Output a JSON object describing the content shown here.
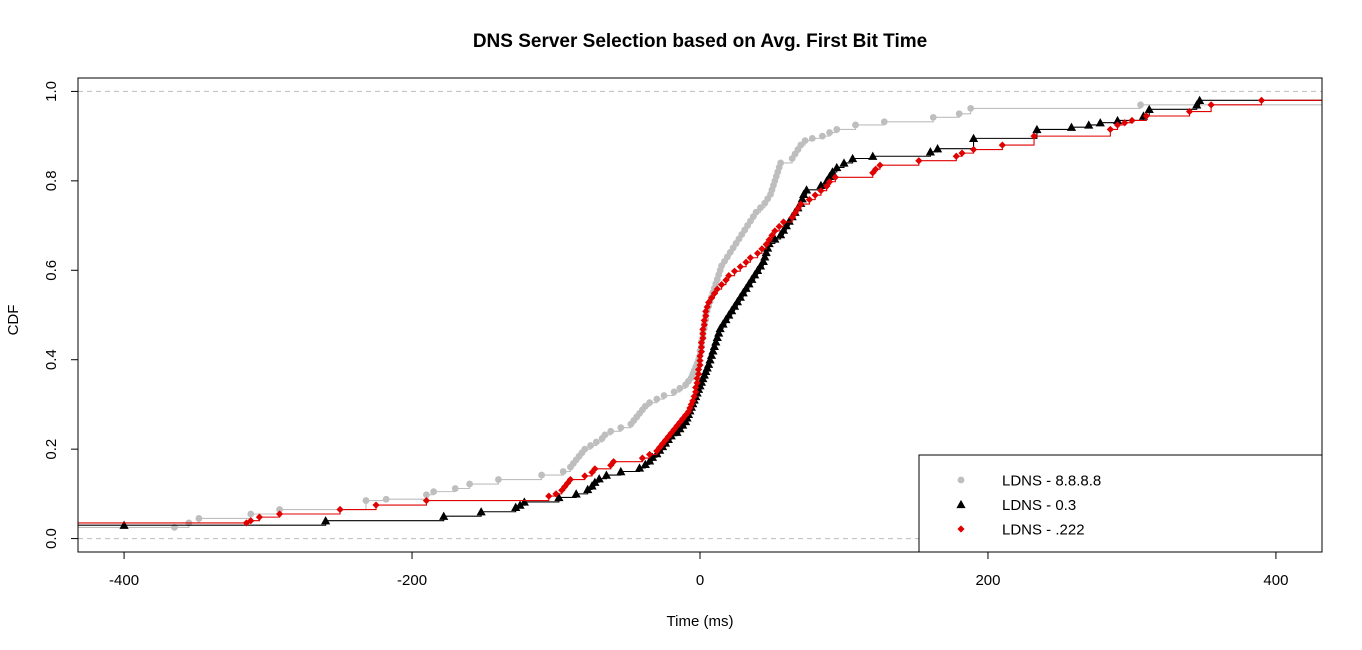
{
  "chart_data": {
    "type": "line",
    "subtype": "empirical-cdf-step",
    "title": "DNS Server Selection based on Avg. First Bit Time",
    "xlabel": "Time (ms)",
    "ylabel": "CDF",
    "xlim": [
      -432,
      432
    ],
    "ylim": [
      -0.03,
      1.03
    ],
    "xticks": [
      -400,
      -200,
      0,
      200,
      400
    ],
    "yticks": [
      0.0,
      0.2,
      0.4,
      0.6,
      0.8,
      1.0
    ],
    "xtick_labels": [
      "-400",
      "-200",
      "0",
      "200",
      "400"
    ],
    "ytick_labels": [
      "0.0",
      "0.2",
      "0.4",
      "0.6",
      "0.8",
      "1.0"
    ],
    "reference_lines_y": [
      0,
      1
    ],
    "grid": false,
    "legend_position": "bottom-right",
    "series": [
      {
        "name": "LDNS - 8.8.8.8",
        "color": "#bebebe",
        "marker": "circle",
        "points": [
          [
            -365,
            0.025
          ],
          [
            -355,
            0.035
          ],
          [
            -348,
            0.045
          ],
          [
            -312,
            0.055
          ],
          [
            -292,
            0.065
          ],
          [
            -232,
            0.085
          ],
          [
            -218,
            0.088
          ],
          [
            -190,
            0.098
          ],
          [
            -185,
            0.105
          ],
          [
            -170,
            0.112
          ],
          [
            -160,
            0.122
          ],
          [
            -140,
            0.132
          ],
          [
            -110,
            0.142
          ],
          [
            -95,
            0.15
          ],
          [
            -90,
            0.16
          ],
          [
            -88,
            0.168
          ],
          [
            -86,
            0.176
          ],
          [
            -84,
            0.184
          ],
          [
            -82,
            0.192
          ],
          [
            -80,
            0.2
          ],
          [
            -76,
            0.208
          ],
          [
            -72,
            0.216
          ],
          [
            -68,
            0.224
          ],
          [
            -66,
            0.232
          ],
          [
            -62,
            0.24
          ],
          [
            -55,
            0.248
          ],
          [
            -48,
            0.256
          ],
          [
            -46,
            0.264
          ],
          [
            -44,
            0.272
          ],
          [
            -42,
            0.28
          ],
          [
            -40,
            0.288
          ],
          [
            -38,
            0.296
          ],
          [
            -35,
            0.304
          ],
          [
            -30,
            0.312
          ],
          [
            -25,
            0.32
          ],
          [
            -18,
            0.328
          ],
          [
            -14,
            0.336
          ],
          [
            -10,
            0.344
          ],
          [
            -8,
            0.352
          ],
          [
            -6,
            0.36
          ],
          [
            -5,
            0.368
          ],
          [
            -4,
            0.376
          ],
          [
            -3,
            0.384
          ],
          [
            -2,
            0.392
          ],
          [
            -1,
            0.4
          ],
          [
            0,
            0.41
          ],
          [
            0,
            0.42
          ],
          [
            1,
            0.43
          ],
          [
            1,
            0.44
          ],
          [
            2,
            0.45
          ],
          [
            2,
            0.46
          ],
          [
            3,
            0.47
          ],
          [
            3,
            0.48
          ],
          [
            4,
            0.49
          ],
          [
            4,
            0.5
          ],
          [
            5,
            0.51
          ],
          [
            6,
            0.52
          ],
          [
            7,
            0.53
          ],
          [
            8,
            0.54
          ],
          [
            9,
            0.55
          ],
          [
            10,
            0.56
          ],
          [
            11,
            0.57
          ],
          [
            12,
            0.58
          ],
          [
            13,
            0.59
          ],
          [
            14,
            0.6
          ],
          [
            15,
            0.61
          ],
          [
            17,
            0.62
          ],
          [
            19,
            0.63
          ],
          [
            21,
            0.64
          ],
          [
            23,
            0.65
          ],
          [
            25,
            0.66
          ],
          [
            27,
            0.67
          ],
          [
            29,
            0.68
          ],
          [
            31,
            0.69
          ],
          [
            33,
            0.7
          ],
          [
            35,
            0.71
          ],
          [
            37,
            0.72
          ],
          [
            39,
            0.73
          ],
          [
            42,
            0.74
          ],
          [
            45,
            0.75
          ],
          [
            47,
            0.76
          ],
          [
            49,
            0.77
          ],
          [
            50,
            0.78
          ],
          [
            51,
            0.79
          ],
          [
            52,
            0.8
          ],
          [
            53,
            0.81
          ],
          [
            54,
            0.82
          ],
          [
            55,
            0.83
          ],
          [
            56,
            0.84
          ],
          [
            64,
            0.85
          ],
          [
            66,
            0.86
          ],
          [
            68,
            0.87
          ],
          [
            70,
            0.88
          ],
          [
            73,
            0.89
          ],
          [
            78,
            0.895
          ],
          [
            85,
            0.9
          ],
          [
            90,
            0.908
          ],
          [
            95,
            0.915
          ],
          [
            108,
            0.925
          ],
          [
            128,
            0.932
          ],
          [
            162,
            0.942
          ],
          [
            180,
            0.95
          ],
          [
            188,
            0.962
          ],
          [
            306,
            0.97
          ]
        ]
      },
      {
        "name": "LDNS - 0.3",
        "color": "#000000",
        "marker": "triangle",
        "points": [
          [
            -400,
            0.03
          ],
          [
            -260,
            0.04
          ],
          [
            -178,
            0.05
          ],
          [
            -152,
            0.06
          ],
          [
            -128,
            0.07
          ],
          [
            -125,
            0.075
          ],
          [
            -122,
            0.082
          ],
          [
            -98,
            0.092
          ],
          [
            -86,
            0.1
          ],
          [
            -78,
            0.11
          ],
          [
            -75,
            0.118
          ],
          [
            -73,
            0.126
          ],
          [
            -70,
            0.134
          ],
          [
            -65,
            0.142
          ],
          [
            -55,
            0.15
          ],
          [
            -42,
            0.158
          ],
          [
            -38,
            0.166
          ],
          [
            -35,
            0.174
          ],
          [
            -33,
            0.182
          ],
          [
            -30,
            0.19
          ],
          [
            -28,
            0.198
          ],
          [
            -26,
            0.206
          ],
          [
            -24,
            0.214
          ],
          [
            -22,
            0.222
          ],
          [
            -20,
            0.23
          ],
          [
            -16,
            0.238
          ],
          [
            -14,
            0.246
          ],
          [
            -12,
            0.254
          ],
          [
            -10,
            0.262
          ],
          [
            -9,
            0.27
          ],
          [
            -8,
            0.278
          ],
          [
            -7,
            0.286
          ],
          [
            -6,
            0.294
          ],
          [
            -5,
            0.302
          ],
          [
            -4,
            0.31
          ],
          [
            -3,
            0.318
          ],
          [
            -2,
            0.326
          ],
          [
            -1,
            0.334
          ],
          [
            0,
            0.342
          ],
          [
            1,
            0.35
          ],
          [
            2,
            0.358
          ],
          [
            3,
            0.366
          ],
          [
            4,
            0.374
          ],
          [
            5,
            0.382
          ],
          [
            6,
            0.39
          ],
          [
            7,
            0.4
          ],
          [
            8,
            0.41
          ],
          [
            9,
            0.42
          ],
          [
            10,
            0.43
          ],
          [
            11,
            0.44
          ],
          [
            12,
            0.45
          ],
          [
            13,
            0.46
          ],
          [
            14,
            0.47
          ],
          [
            16,
            0.48
          ],
          [
            18,
            0.49
          ],
          [
            20,
            0.5
          ],
          [
            22,
            0.51
          ],
          [
            24,
            0.52
          ],
          [
            26,
            0.53
          ],
          [
            28,
            0.54
          ],
          [
            30,
            0.55
          ],
          [
            32,
            0.56
          ],
          [
            34,
            0.57
          ],
          [
            36,
            0.58
          ],
          [
            38,
            0.59
          ],
          [
            40,
            0.6
          ],
          [
            42,
            0.61
          ],
          [
            44,
            0.62
          ],
          [
            45,
            0.63
          ],
          [
            46,
            0.64
          ],
          [
            47,
            0.65
          ],
          [
            48,
            0.66
          ],
          [
            52,
            0.67
          ],
          [
            56,
            0.68
          ],
          [
            58,
            0.69
          ],
          [
            60,
            0.7
          ],
          [
            62,
            0.71
          ],
          [
            64,
            0.72
          ],
          [
            66,
            0.73
          ],
          [
            68,
            0.74
          ],
          [
            70,
            0.75
          ],
          [
            71,
            0.76
          ],
          [
            72,
            0.77
          ],
          [
            74,
            0.78
          ],
          [
            84,
            0.79
          ],
          [
            88,
            0.8
          ],
          [
            90,
            0.81
          ],
          [
            92,
            0.82
          ],
          [
            95,
            0.83
          ],
          [
            100,
            0.84
          ],
          [
            106,
            0.85
          ],
          [
            120,
            0.855
          ],
          [
            160,
            0.865
          ],
          [
            165,
            0.872
          ],
          [
            190,
            0.895
          ],
          [
            234,
            0.915
          ],
          [
            258,
            0.92
          ],
          [
            270,
            0.925
          ],
          [
            278,
            0.93
          ],
          [
            290,
            0.935
          ],
          [
            308,
            0.945
          ],
          [
            312,
            0.96
          ],
          [
            345,
            0.97
          ],
          [
            347,
            0.98
          ]
        ]
      },
      {
        "name": "LDNS - .222",
        "color": "#e00000",
        "marker": "diamond",
        "points": [
          [
            -315,
            0.035
          ],
          [
            -312,
            0.04
          ],
          [
            -306,
            0.048
          ],
          [
            -292,
            0.055
          ],
          [
            -250,
            0.065
          ],
          [
            -225,
            0.075
          ],
          [
            -190,
            0.085
          ],
          [
            -105,
            0.095
          ],
          [
            -100,
            0.1
          ],
          [
            -96,
            0.108
          ],
          [
            -94,
            0.116
          ],
          [
            -92,
            0.124
          ],
          [
            -90,
            0.132
          ],
          [
            -80,
            0.14
          ],
          [
            -75,
            0.148
          ],
          [
            -73,
            0.156
          ],
          [
            -62,
            0.164
          ],
          [
            -60,
            0.172
          ],
          [
            -40,
            0.18
          ],
          [
            -35,
            0.188
          ],
          [
            -30,
            0.196
          ],
          [
            -28,
            0.204
          ],
          [
            -26,
            0.212
          ],
          [
            -24,
            0.22
          ],
          [
            -22,
            0.228
          ],
          [
            -20,
            0.236
          ],
          [
            -18,
            0.244
          ],
          [
            -16,
            0.252
          ],
          [
            -14,
            0.26
          ],
          [
            -12,
            0.268
          ],
          [
            -10,
            0.276
          ],
          [
            -8,
            0.284
          ],
          [
            -7,
            0.292
          ],
          [
            -6,
            0.3
          ],
          [
            -5,
            0.308
          ],
          [
            -4,
            0.318
          ],
          [
            -3,
            0.328
          ],
          [
            -3,
            0.338
          ],
          [
            -2,
            0.348
          ],
          [
            -2,
            0.358
          ],
          [
            -1,
            0.368
          ],
          [
            -1,
            0.378
          ],
          [
            0,
            0.388
          ],
          [
            0,
            0.398
          ],
          [
            0,
            0.408
          ],
          [
            1,
            0.418
          ],
          [
            1,
            0.428
          ],
          [
            1,
            0.438
          ],
          [
            2,
            0.448
          ],
          [
            2,
            0.458
          ],
          [
            2,
            0.468
          ],
          [
            3,
            0.478
          ],
          [
            3,
            0.488
          ],
          [
            4,
            0.498
          ],
          [
            4,
            0.508
          ],
          [
            5,
            0.518
          ],
          [
            6,
            0.528
          ],
          [
            8,
            0.538
          ],
          [
            10,
            0.548
          ],
          [
            12,
            0.558
          ],
          [
            15,
            0.568
          ],
          [
            18,
            0.578
          ],
          [
            20,
            0.588
          ],
          [
            24,
            0.598
          ],
          [
            28,
            0.608
          ],
          [
            32,
            0.618
          ],
          [
            35,
            0.628
          ],
          [
            40,
            0.638
          ],
          [
            43,
            0.648
          ],
          [
            46,
            0.658
          ],
          [
            48,
            0.668
          ],
          [
            50,
            0.678
          ],
          [
            52,
            0.688
          ],
          [
            55,
            0.698
          ],
          [
            58,
            0.708
          ],
          [
            64,
            0.718
          ],
          [
            66,
            0.728
          ],
          [
            68,
            0.738
          ],
          [
            70,
            0.748
          ],
          [
            76,
            0.758
          ],
          [
            80,
            0.768
          ],
          [
            84,
            0.778
          ],
          [
            88,
            0.788
          ],
          [
            90,
            0.798
          ],
          [
            94,
            0.808
          ],
          [
            120,
            0.818
          ],
          [
            122,
            0.826
          ],
          [
            125,
            0.835
          ],
          [
            152,
            0.845
          ],
          [
            178,
            0.855
          ],
          [
            182,
            0.862
          ],
          [
            190,
            0.87
          ],
          [
            210,
            0.88
          ],
          [
            232,
            0.9
          ],
          [
            285,
            0.915
          ],
          [
            290,
            0.925
          ],
          [
            295,
            0.93
          ],
          [
            300,
            0.935
          ],
          [
            310,
            0.945
          ],
          [
            340,
            0.955
          ],
          [
            355,
            0.97
          ],
          [
            390,
            0.98
          ]
        ]
      }
    ]
  }
}
